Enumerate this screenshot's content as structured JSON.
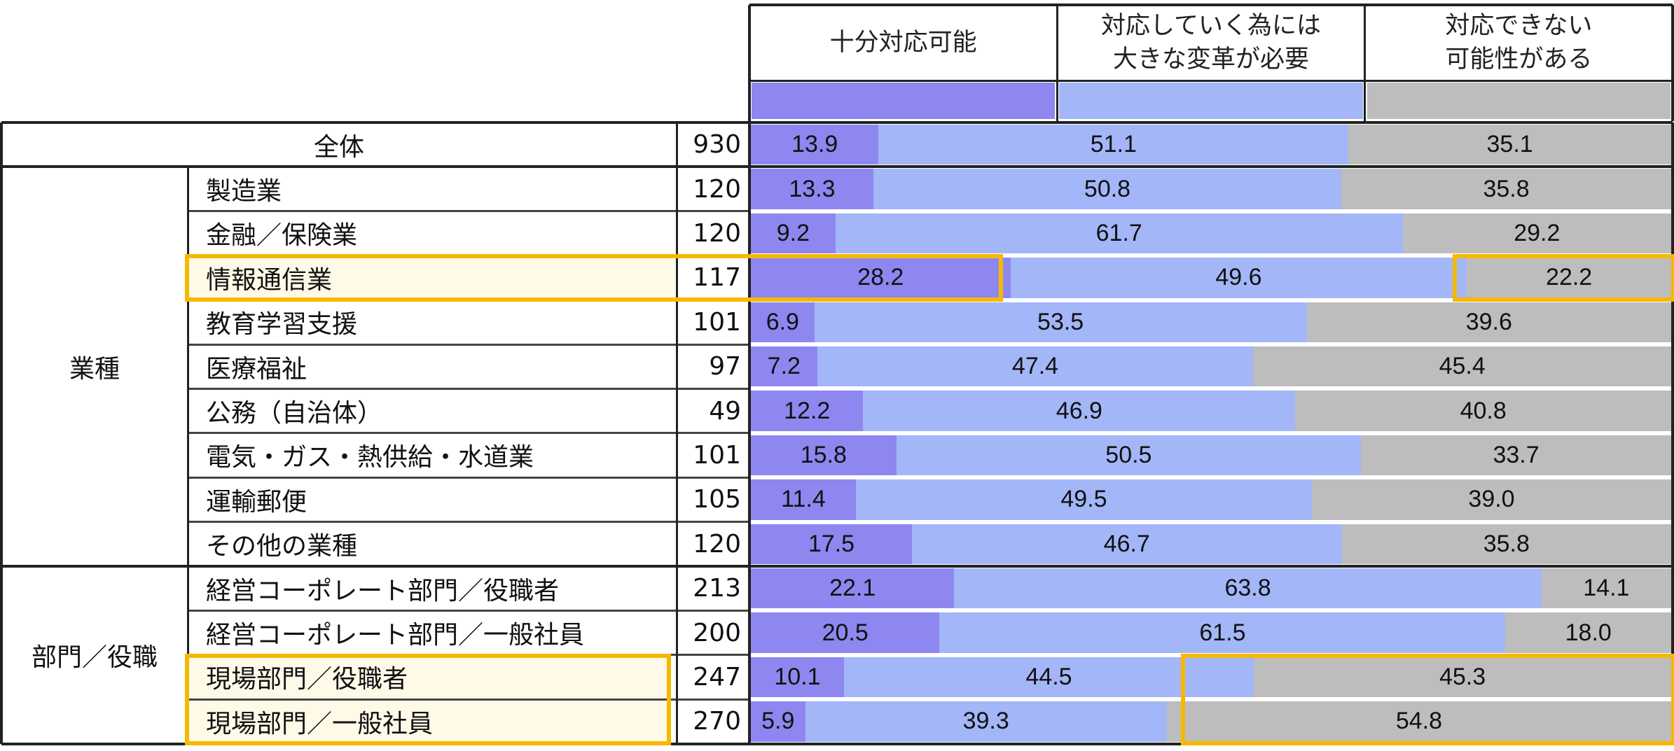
{
  "chart_data": {
    "type": "bar",
    "stacked": true,
    "orientation": "horizontal",
    "unit": "%",
    "legend": [
      "十分対応可能",
      "対応していく為には\n大きな変革が必要",
      "対応できない\n可能性がある"
    ],
    "colors": [
      "#8e87f0",
      "#a3b6f8",
      "#bdbdbd"
    ],
    "rows": [
      {
        "group": "",
        "label": "全体",
        "n": "930",
        "values": [
          13.9,
          51.1,
          35.1
        ],
        "labels": [
          "13.9",
          "51.1",
          "35.1"
        ]
      },
      {
        "group": "業種",
        "label": "製造業",
        "n": "120",
        "values": [
          13.3,
          50.8,
          35.8
        ],
        "labels": [
          "13.3",
          "50.8",
          "35.8"
        ]
      },
      {
        "group": "業種",
        "label": "金融／保険業",
        "n": "120",
        "values": [
          9.2,
          61.7,
          29.2
        ],
        "labels": [
          "9.2",
          "61.7",
          "29.2"
        ]
      },
      {
        "group": "業種",
        "label": "情報通信業",
        "n": "117",
        "values": [
          28.2,
          49.6,
          22.2
        ],
        "labels": [
          "28.2",
          "49.6",
          "22.2"
        ]
      },
      {
        "group": "業種",
        "label": "教育学習支援",
        "n": "101",
        "values": [
          6.9,
          53.5,
          39.6
        ],
        "labels": [
          "6.9",
          "53.5",
          "39.6"
        ]
      },
      {
        "group": "業種",
        "label": "医療福祉",
        "n": "97",
        "values": [
          7.2,
          47.4,
          45.4
        ],
        "labels": [
          "7.2",
          "47.4",
          "45.4"
        ]
      },
      {
        "group": "業種",
        "label": "公務（自治体）",
        "n": "49",
        "values": [
          12.2,
          46.9,
          40.8
        ],
        "labels": [
          "12.2",
          "46.9",
          "40.8"
        ]
      },
      {
        "group": "業種",
        "label": "電気・ガス・熱供給・水道業",
        "n": "101",
        "values": [
          15.8,
          50.5,
          33.7
        ],
        "labels": [
          "15.8",
          "50.5",
          "33.7"
        ]
      },
      {
        "group": "業種",
        "label": "運輸郵便",
        "n": "105",
        "values": [
          11.4,
          49.5,
          39.0
        ],
        "labels": [
          "11.4",
          "49.5",
          "39.0"
        ]
      },
      {
        "group": "業種",
        "label": "その他の業種",
        "n": "120",
        "values": [
          17.5,
          46.7,
          35.8
        ],
        "labels": [
          "17.5",
          "46.7",
          "35.8"
        ]
      },
      {
        "group": "部門／役職",
        "label": "経営コーポレート部門／役職者",
        "n": "213",
        "values": [
          22.1,
          63.8,
          14.1
        ],
        "labels": [
          "22.1",
          "63.8",
          "14.1"
        ]
      },
      {
        "group": "部門／役職",
        "label": "経営コーポレート部門／一般社員",
        "n": "200",
        "values": [
          20.5,
          61.5,
          18.0
        ],
        "labels": [
          "20.5",
          "61.5",
          "18.0"
        ]
      },
      {
        "group": "部門／役職",
        "label": "現場部門／役職者",
        "n": "247",
        "values": [
          10.1,
          44.5,
          45.3
        ],
        "labels": [
          "10.1",
          "44.5",
          "45.3"
        ]
      },
      {
        "group": "部門／役職",
        "label": "現場部門／一般社員",
        "n": "270",
        "values": [
          5.9,
          39.3,
          54.8
        ],
        "labels": [
          "5.9",
          "39.3",
          "54.8"
        ]
      }
    ],
    "groups": [
      {
        "label": "業種",
        "first_row": 1,
        "last_row": 9
      },
      {
        "label": "部門／役職",
        "first_row": 10,
        "last_row": 13
      }
    ],
    "highlights": [
      "情報通信業: 十分対応可能 / 対応できない可能性がある",
      "現場部門／役職者, 現場部門／一般社員"
    ]
  }
}
